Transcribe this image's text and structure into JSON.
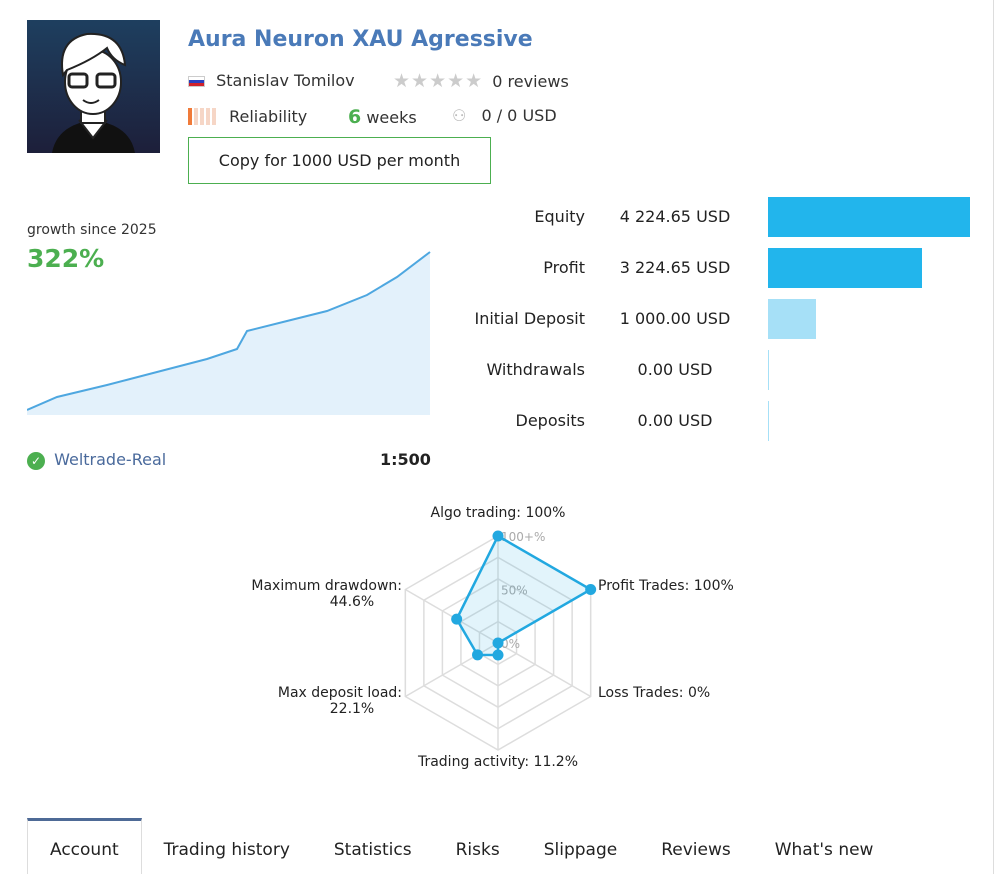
{
  "signal": {
    "title": "Aura Neuron XAU Agressive",
    "author": "Stanislav Tomilov",
    "reviews": "0 reviews",
    "rating_stars": 0,
    "reliability_label": "Reliability",
    "reliability_level": 1,
    "weeks_num": "6",
    "weeks_label": "weeks",
    "subscribers": "0 / 0 USD",
    "copy_button": "Copy for 1000 USD per month"
  },
  "growth": {
    "label": "growth since 2025",
    "value": "322%"
  },
  "account": {
    "broker": "Weltrade-Real",
    "leverage": "1:500"
  },
  "balances": [
    {
      "label": "Equity",
      "value": "4 224.65 USD",
      "amount": 4224.65,
      "color": "#22b5ec"
    },
    {
      "label": "Profit",
      "value": "3 224.65 USD",
      "amount": 3224.65,
      "color": "#22b5ec"
    },
    {
      "label": "Initial Deposit",
      "value": "1 000.00 USD",
      "amount": 1000,
      "color": "#a6e0f7"
    },
    {
      "label": "Withdrawals",
      "value": "0.00 USD",
      "amount": 0,
      "color": "#a6e0f7"
    },
    {
      "label": "Deposits",
      "value": "0.00 USD",
      "amount": 0,
      "color": "#a6e0f7"
    }
  ],
  "chart_data": {
    "type": "radar",
    "ticks": [
      "0%",
      "50%",
      "100+%"
    ],
    "axes": [
      {
        "label": "Algo trading:",
        "value": 100,
        "text": "100%"
      },
      {
        "label": "Profit Trades:",
        "value": 100,
        "text": "100%"
      },
      {
        "label": "Loss Trades:",
        "value": 0,
        "text": "0%"
      },
      {
        "label": "Trading activity:",
        "value": 11.2,
        "text": "11.2%"
      },
      {
        "label": "Max deposit load:",
        "value": 22.1,
        "text": "22.1%"
      },
      {
        "label": "Maximum drawdown:",
        "value": 44.6,
        "text": "44.6%"
      }
    ],
    "color": "#22a8e0"
  },
  "tabs": [
    "Account",
    "Trading history",
    "Statistics",
    "Risks",
    "Slippage",
    "Reviews",
    "What's new"
  ]
}
